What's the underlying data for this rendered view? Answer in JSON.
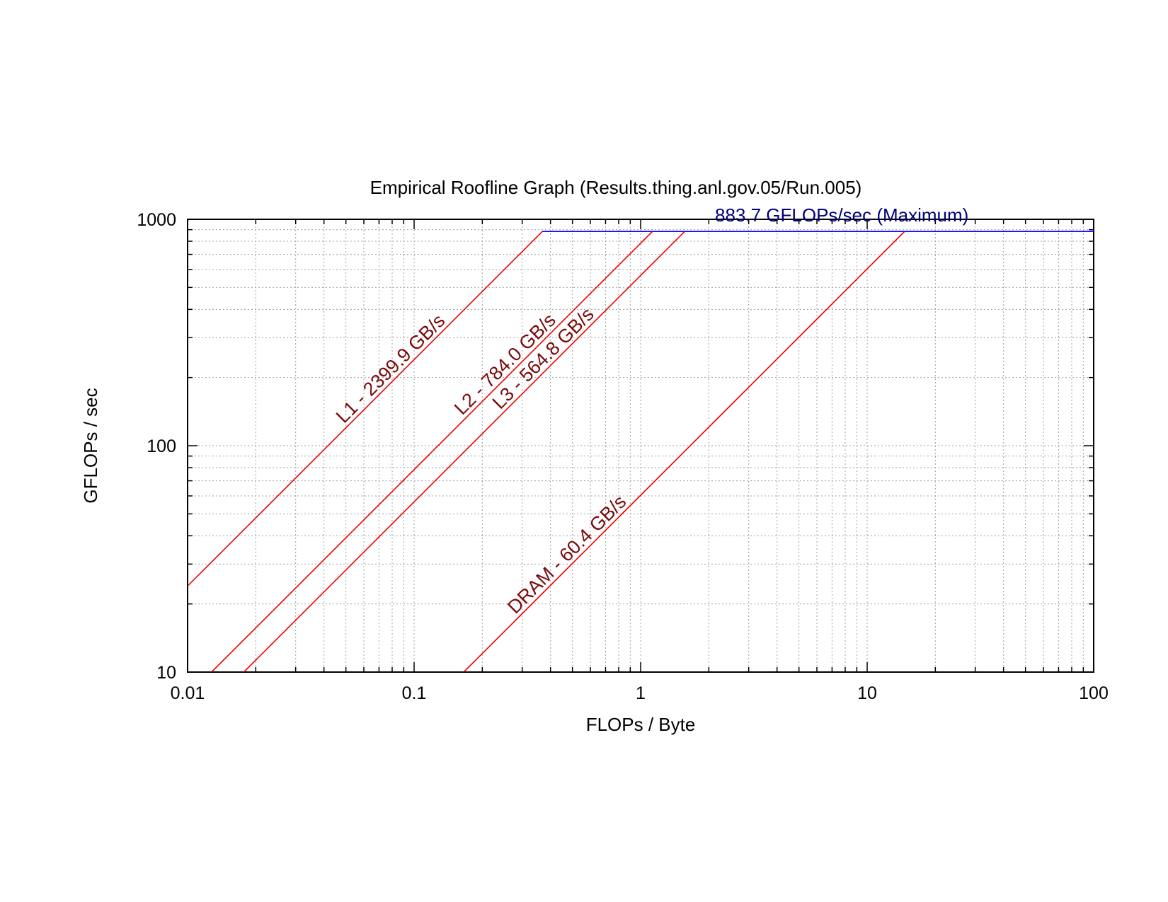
{
  "chart_data": {
    "type": "line",
    "title": "Empirical Roofline Graph (Results.thing.anl.gov.05/Run.005)",
    "xlabel": "FLOPs / Byte",
    "ylabel": "GFLOPs / sec",
    "x_scale": "log",
    "y_scale": "log",
    "xlim": [
      0.01,
      100
    ],
    "ylim": [
      10,
      1000
    ],
    "x_ticks": [
      {
        "value": 0.01,
        "label": "0.01"
      },
      {
        "value": 0.1,
        "label": "0.1"
      },
      {
        "value": 1,
        "label": "1"
      },
      {
        "value": 10,
        "label": "10"
      },
      {
        "value": 100,
        "label": "100"
      }
    ],
    "y_ticks": [
      {
        "value": 10,
        "label": "10"
      },
      {
        "value": 100,
        "label": "100"
      },
      {
        "value": 1000,
        "label": "1000"
      }
    ],
    "grid": true,
    "peak": {
      "value": 883.7,
      "label": "883.7 GFLOPs/sec (Maximum)",
      "color": "#0000ff",
      "label_color": "#00007a"
    },
    "bandwidth_series": [
      {
        "label": "L1 - 2399.9 GB/s",
        "bandwidth": 2399.9,
        "color": "#ee0000",
        "label_color": "#7a0a0a",
        "label_at_x": 0.049
      },
      {
        "label": "L2 - 784.0 GB/s",
        "bandwidth": 784.0,
        "color": "#ee0000",
        "label_color": "#7a0a0a",
        "label_at_x": 0.163
      },
      {
        "label": "L3 - 564.8 GB/s",
        "bandwidth": 564.8,
        "color": "#ee0000",
        "label_color": "#7a0a0a",
        "label_at_x": 0.24
      },
      {
        "label": "DRAM - 60.4 GB/s",
        "bandwidth": 60.4,
        "color": "#ee0000",
        "label_color": "#7a0a0a",
        "label_at_x": 0.28
      }
    ]
  }
}
